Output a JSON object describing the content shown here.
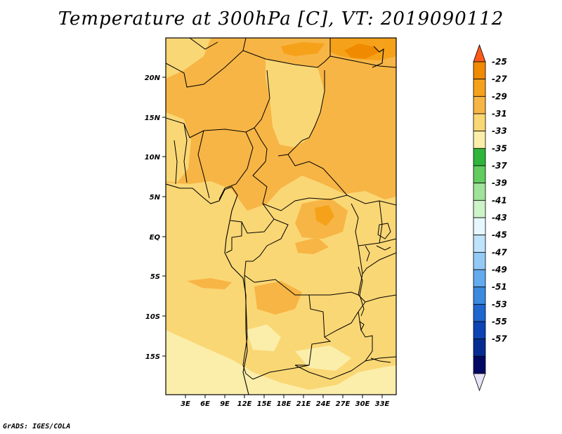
{
  "title": "Temperature at 300hPa [C], VT: 2019090112",
  "credit": "GrADS: IGES/COLA",
  "map": {
    "lat_labels": [
      "20N",
      "15N",
      "10N",
      "5N",
      "EQ",
      "5S",
      "10S",
      "15S"
    ],
    "lon_labels": [
      "3E",
      "6E",
      "9E",
      "12E",
      "15E",
      "18E",
      "21E",
      "24E",
      "27E",
      "30E",
      "33E"
    ]
  },
  "colorbar": {
    "labels": [
      "-25",
      "-27",
      "-29",
      "-31",
      "-33",
      "-35",
      "-37",
      "-39",
      "-41",
      "-43",
      "-45",
      "-47",
      "-49",
      "-51",
      "-53",
      "-55",
      "-57"
    ],
    "colors": [
      "#ff5a1a",
      "#f08a00",
      "#f5a21a",
      "#f7b545",
      "#fad775",
      "#fbeeaa",
      "#2fb53a",
      "#62cc5f",
      "#9fe39a",
      "#cdf3c9",
      "#e6f7ff",
      "#bfe3fb",
      "#93caf5",
      "#63aaee",
      "#3b8ae0",
      "#1f66cf",
      "#0c44b5",
      "#062c94",
      "#010864",
      "#e8e4f8"
    ]
  }
}
